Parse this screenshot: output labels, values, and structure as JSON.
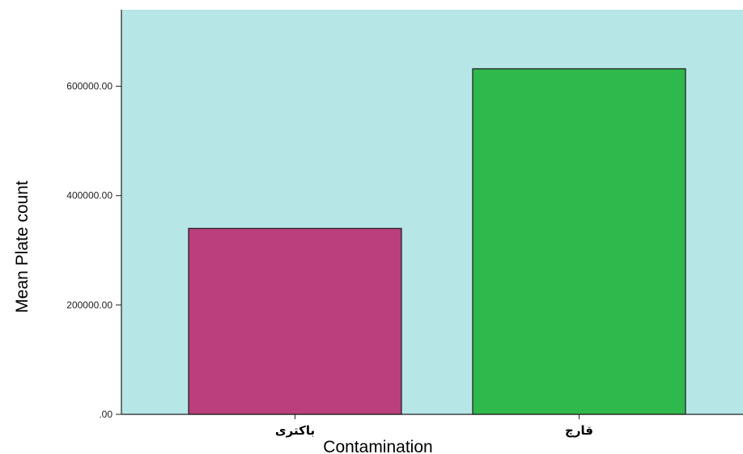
{
  "chart_data": {
    "type": "bar",
    "categories": [
      "باکتری",
      "قارچ"
    ],
    "values": [
      340000,
      632000
    ],
    "xlabel": "Contamination",
    "ylabel": "Mean Plate count",
    "ylim": [
      0,
      740000
    ],
    "yticks": [
      {
        "value": 0,
        "label": ".00"
      },
      {
        "value": 200000,
        "label": "200000.00"
      },
      {
        "value": 400000,
        "label": "400000.00"
      },
      {
        "value": 600000,
        "label": "600000.00"
      }
    ],
    "grid": false,
    "legend": "none",
    "colors": {
      "plot_background": "#b7e6e6",
      "bars": [
        "#bb3f7c",
        "#2fb84b"
      ],
      "bar_outline": "#1a1a1a",
      "axis": "#222222"
    }
  }
}
